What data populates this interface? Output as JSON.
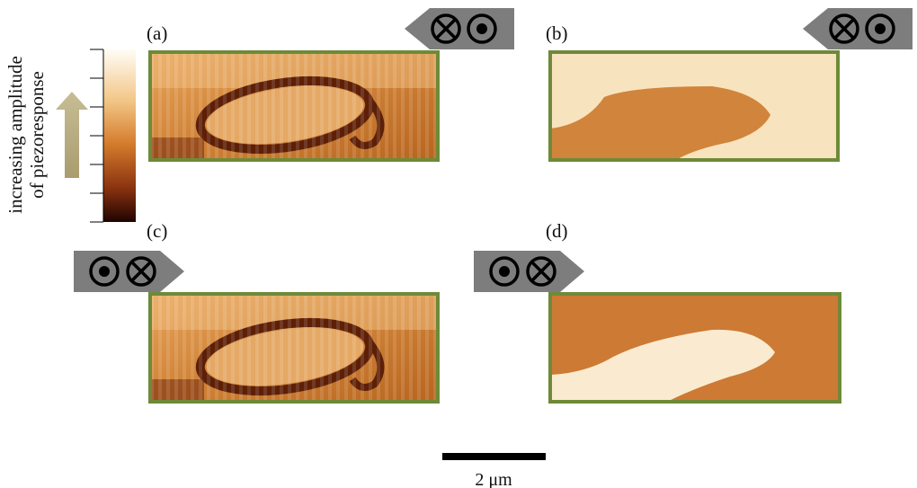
{
  "colorbar": {
    "label": [
      "increasing amplitude",
      "of piezoresponse"
    ]
  },
  "panels": [
    {
      "label": "(a)"
    },
    {
      "label": "(b)"
    },
    {
      "label": "(c)"
    },
    {
      "label": "(d)"
    }
  ],
  "scale_bar": {
    "label": "2 μm"
  }
}
